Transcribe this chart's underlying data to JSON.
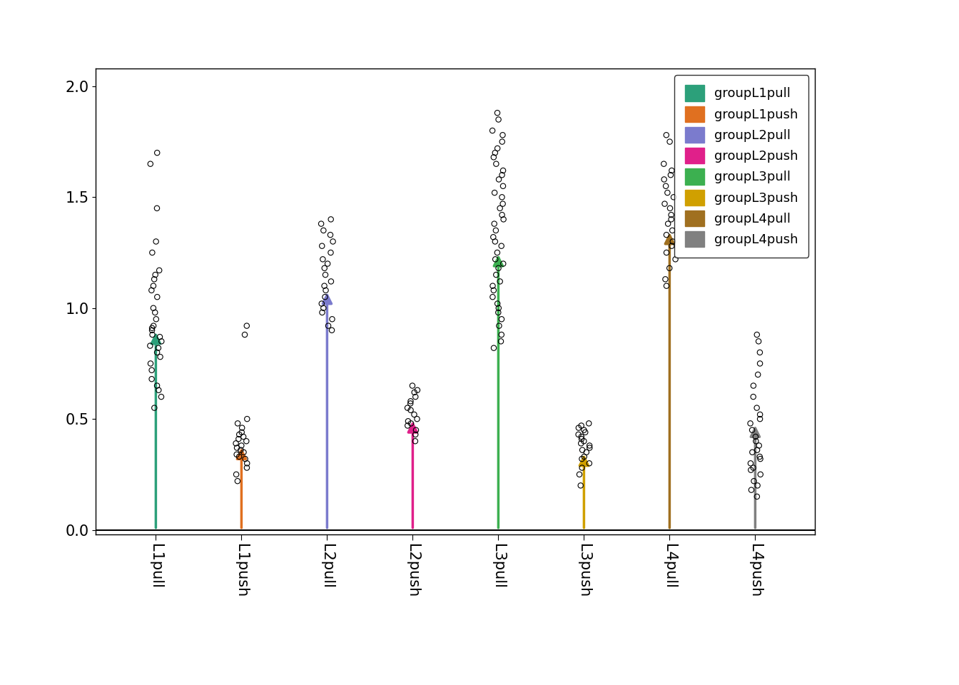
{
  "categories": [
    "L1pull",
    "L1push",
    "L2pull",
    "L2push",
    "L3pull",
    "L3push",
    "L4pull",
    "L4push"
  ],
  "arrow_heights": [
    0.9,
    0.38,
    1.08,
    0.5,
    1.25,
    0.35,
    1.35,
    0.48
  ],
  "arrow_colors": [
    "#2ca07a",
    "#e07020",
    "#7b7bcd",
    "#e0208a",
    "#3cb050",
    "#d0a000",
    "#a07020",
    "#808080"
  ],
  "legend_labels": [
    "groupL1pull",
    "groupL1push",
    "groupL2pull",
    "groupL2push",
    "groupL3pull",
    "groupL3push",
    "groupL4pull",
    "groupL4push"
  ],
  "legend_colors": [
    "#2ca07a",
    "#e07020",
    "#7b7bcd",
    "#e0208a",
    "#3cb050",
    "#d0a000",
    "#a07020",
    "#808080"
  ],
  "ylim": [
    -0.02,
    2.08
  ],
  "yticks": [
    0.0,
    0.5,
    1.0,
    1.5,
    2.0
  ],
  "scatter_data": {
    "L1pull": [
      0.55,
      0.6,
      0.63,
      0.65,
      0.68,
      0.72,
      0.75,
      0.78,
      0.8,
      0.82,
      0.83,
      0.85,
      0.87,
      0.88,
      0.9,
      0.91,
      0.92,
      0.95,
      0.98,
      1.0,
      1.05,
      1.08,
      1.1,
      1.13,
      1.15,
      1.17,
      1.25,
      1.3,
      1.45,
      1.65,
      1.7
    ],
    "L1push": [
      0.22,
      0.25,
      0.28,
      0.3,
      0.32,
      0.33,
      0.34,
      0.35,
      0.36,
      0.37,
      0.38,
      0.39,
      0.4,
      0.41,
      0.42,
      0.43,
      0.44,
      0.46,
      0.48,
      0.5,
      0.88,
      0.92
    ],
    "L2pull": [
      0.9,
      0.92,
      0.95,
      0.98,
      1.0,
      1.02,
      1.05,
      1.08,
      1.1,
      1.12,
      1.15,
      1.18,
      1.2,
      1.22,
      1.25,
      1.28,
      1.3,
      1.33,
      1.35,
      1.38,
      1.4
    ],
    "L2push": [
      0.4,
      0.43,
      0.45,
      0.47,
      0.48,
      0.49,
      0.5,
      0.52,
      0.54,
      0.55,
      0.57,
      0.58,
      0.6,
      0.62,
      0.63,
      0.65
    ],
    "L3pull": [
      0.82,
      0.85,
      0.88,
      0.92,
      0.95,
      0.98,
      1.0,
      1.02,
      1.05,
      1.08,
      1.1,
      1.12,
      1.15,
      1.18,
      1.2,
      1.22,
      1.25,
      1.28,
      1.3,
      1.32,
      1.35,
      1.38,
      1.4,
      1.42,
      1.45,
      1.47,
      1.5,
      1.52,
      1.55,
      1.58,
      1.6,
      1.62,
      1.65,
      1.68,
      1.7,
      1.72,
      1.75,
      1.78,
      1.8,
      1.85,
      1.88
    ],
    "L3push": [
      0.2,
      0.25,
      0.28,
      0.3,
      0.32,
      0.33,
      0.35,
      0.36,
      0.37,
      0.38,
      0.39,
      0.4,
      0.41,
      0.42,
      0.43,
      0.44,
      0.45,
      0.46,
      0.47,
      0.48
    ],
    "L4pull": [
      1.1,
      1.13,
      1.18,
      1.22,
      1.25,
      1.28,
      1.3,
      1.33,
      1.35,
      1.38,
      1.4,
      1.42,
      1.45,
      1.47,
      1.5,
      1.52,
      1.55,
      1.58,
      1.6,
      1.62,
      1.65,
      1.75,
      1.78
    ],
    "L4push": [
      0.15,
      0.18,
      0.2,
      0.22,
      0.25,
      0.27,
      0.28,
      0.3,
      0.32,
      0.33,
      0.35,
      0.36,
      0.38,
      0.4,
      0.42,
      0.45,
      0.48,
      0.5,
      0.52,
      0.55,
      0.6,
      0.65,
      0.7,
      0.75,
      0.8,
      0.85,
      0.88
    ]
  },
  "background_color": "#ffffff",
  "fig_width": 13.44,
  "fig_height": 9.6,
  "jitter_scale": 0.07
}
